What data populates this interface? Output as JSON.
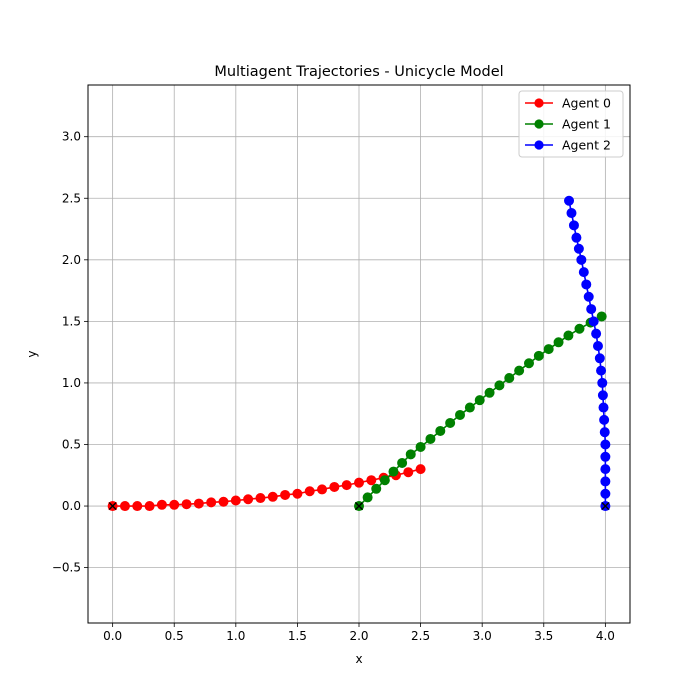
{
  "chart_data": {
    "type": "line",
    "title": "Multiagent Trajectories - Unicycle Model",
    "xlabel": "x",
    "ylabel": "y",
    "xlim": [
      -0.2,
      4.2
    ],
    "ylim": [
      -0.95,
      3.42
    ],
    "xticks": [
      "0.0",
      "0.5",
      "1.0",
      "1.5",
      "2.0",
      "2.5",
      "3.0",
      "3.5",
      "4.0"
    ],
    "yticks": [
      "-0.5",
      "0.0",
      "0.5",
      "1.0",
      "1.5",
      "2.0",
      "2.5",
      "3.0"
    ],
    "grid": true,
    "legend_position": "top-right",
    "series": [
      {
        "name": "Agent 0",
        "color": "#ff0000",
        "x": [
          0.0,
          0.1,
          0.2,
          0.3,
          0.4,
          0.5,
          0.6,
          0.7,
          0.8,
          0.9,
          1.0,
          1.1,
          1.2,
          1.3,
          1.4,
          1.5,
          1.6,
          1.7,
          1.8,
          1.9,
          2.0,
          2.1,
          2.2,
          2.3,
          2.4,
          2.5
        ],
        "y": [
          0.0,
          0.0,
          0.0,
          0.0,
          0.01,
          0.01,
          0.015,
          0.02,
          0.03,
          0.035,
          0.045,
          0.055,
          0.065,
          0.075,
          0.09,
          0.1,
          0.12,
          0.135,
          0.155,
          0.17,
          0.19,
          0.21,
          0.23,
          0.25,
          0.275,
          0.3
        ],
        "start": [
          0.0,
          0.0
        ]
      },
      {
        "name": "Agent 1",
        "color": "#008000",
        "x": [
          2.0,
          2.07,
          2.14,
          2.21,
          2.28,
          2.35,
          2.42,
          2.5,
          2.58,
          2.66,
          2.74,
          2.82,
          2.9,
          2.98,
          3.06,
          3.14,
          3.22,
          3.3,
          3.38,
          3.46,
          3.54,
          3.62,
          3.7,
          3.79,
          3.88,
          3.97
        ],
        "y": [
          0.0,
          0.07,
          0.14,
          0.21,
          0.28,
          0.35,
          0.42,
          0.48,
          0.545,
          0.61,
          0.675,
          0.74,
          0.8,
          0.86,
          0.92,
          0.98,
          1.04,
          1.1,
          1.16,
          1.22,
          1.275,
          1.33,
          1.385,
          1.44,
          1.49,
          1.54
        ],
        "start": [
          2.0,
          0.0
        ]
      },
      {
        "name": "Agent 2",
        "color": "#0000ff",
        "x": [
          4.0,
          4.0,
          4.0,
          4.0,
          4.0,
          4.0,
          3.995,
          3.99,
          3.985,
          3.98,
          3.975,
          3.965,
          3.955,
          3.94,
          3.925,
          3.905,
          3.885,
          3.865,
          3.845,
          3.825,
          3.805,
          3.785,
          3.765,
          3.745,
          3.725,
          3.705
        ],
        "y": [
          0.0,
          0.1,
          0.2,
          0.3,
          0.4,
          0.5,
          0.6,
          0.7,
          0.8,
          0.9,
          1.0,
          1.1,
          1.2,
          1.3,
          1.4,
          1.5,
          1.6,
          1.7,
          1.8,
          1.9,
          2.0,
          2.09,
          2.18,
          2.28,
          2.38,
          2.48
        ],
        "start": [
          4.0,
          0.0
        ]
      }
    ]
  }
}
